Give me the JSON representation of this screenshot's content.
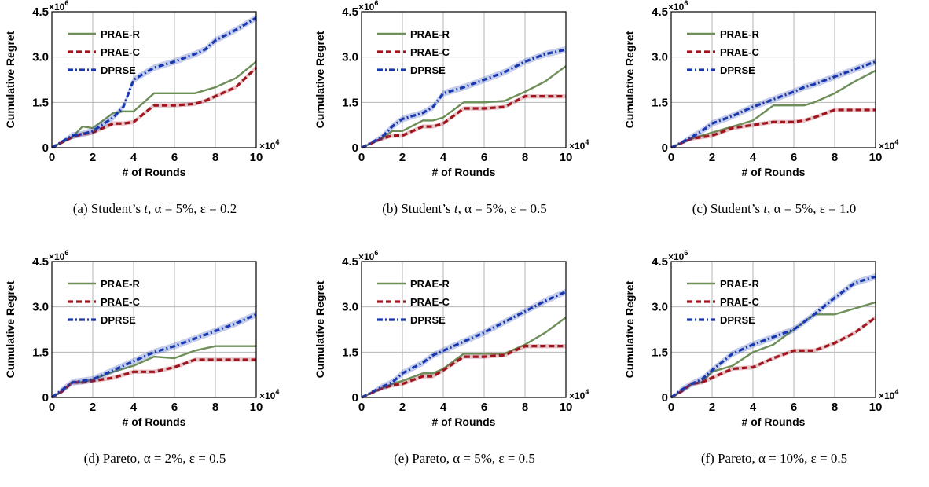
{
  "colors": {
    "prae_r": "#6e8f5a",
    "prae_c": "#a0141e",
    "dprse": "#1838b0",
    "grid": "#b5b5b5"
  },
  "common": {
    "xlabel": "# of Rounds",
    "ylabel": "Cumulative Regret",
    "x_ticks": [
      "0",
      "2",
      "4",
      "6",
      "8",
      "10"
    ],
    "y_ticks": [
      "0",
      "1.5",
      "3.0",
      "4.5"
    ],
    "x_multiplier": "×10",
    "x_multiplier_exp": "4",
    "y_multiplier": "×10",
    "y_multiplier_exp": "6",
    "legend": [
      "PRAE-R",
      "PRAE-C",
      "DPRSE"
    ]
  },
  "captions": [
    {
      "label": "(a) Student’s ",
      "dist": "t",
      "alpha": "α = 5%",
      "eps": "ε = 0.2"
    },
    {
      "label": "(b) Student’s ",
      "dist": "t",
      "alpha": "α = 5%",
      "eps": "ε = 0.5"
    },
    {
      "label": "(c) Student’s ",
      "dist": "t",
      "alpha": "α = 5%",
      "eps": "ε = 1.0"
    },
    {
      "label": "(d) Pareto, ",
      "dist": "",
      "alpha": "α = 2%",
      "eps": "ε = 0.5"
    },
    {
      "label": "(e) Pareto, ",
      "dist": "",
      "alpha": "α = 5%",
      "eps": "ε = 0.5"
    },
    {
      "label": "(f) Pareto, ",
      "dist": "",
      "alpha": "α = 10%",
      "eps": "ε = 0.5"
    }
  ],
  "chart_data": [
    {
      "type": "line",
      "xlim": [
        0,
        10
      ],
      "ylim": [
        0,
        4.5
      ],
      "grid": true,
      "legend_position": "top-left",
      "xlabel": "# of Rounds",
      "ylabel": "Cumulative Regret",
      "x": [
        0,
        1,
        1.5,
        2,
        3,
        3.5,
        4,
        5,
        6,
        7,
        7.5,
        8,
        9,
        10
      ],
      "series": [
        {
          "name": "PRAE-R",
          "values": [
            0,
            0.35,
            0.7,
            0.65,
            1.15,
            1.2,
            1.2,
            1.8,
            1.8,
            1.8,
            1.9,
            2.0,
            2.3,
            2.85
          ]
        },
        {
          "name": "PRAE-C",
          "values": [
            0,
            0.35,
            0.45,
            0.5,
            0.8,
            0.8,
            0.85,
            1.4,
            1.4,
            1.45,
            1.55,
            1.7,
            2.0,
            2.65
          ]
        },
        {
          "name": "DPRSE",
          "values": [
            0,
            0.4,
            0.45,
            0.55,
            1.0,
            1.35,
            2.25,
            2.65,
            2.85,
            3.1,
            3.25,
            3.55,
            3.9,
            4.3
          ]
        }
      ]
    },
    {
      "type": "line",
      "xlim": [
        0,
        10
      ],
      "ylim": [
        0,
        4.5
      ],
      "grid": true,
      "legend_position": "top-left",
      "xlabel": "# of Rounds",
      "ylabel": "Cumulative Regret",
      "x": [
        0,
        1,
        1.5,
        2,
        3,
        3.5,
        4,
        5,
        6,
        7,
        8,
        9,
        10
      ],
      "series": [
        {
          "name": "PRAE-R",
          "values": [
            0,
            0.3,
            0.55,
            0.55,
            0.9,
            0.9,
            1.0,
            1.5,
            1.5,
            1.55,
            1.85,
            2.2,
            2.7
          ]
        },
        {
          "name": "PRAE-C",
          "values": [
            0,
            0.3,
            0.4,
            0.4,
            0.7,
            0.7,
            0.8,
            1.3,
            1.3,
            1.35,
            1.7,
            1.7,
            1.7
          ]
        },
        {
          "name": "DPRSE",
          "values": [
            0,
            0.35,
            0.7,
            0.95,
            1.15,
            1.35,
            1.8,
            2.0,
            2.25,
            2.5,
            2.85,
            3.1,
            3.25
          ]
        }
      ]
    },
    {
      "type": "line",
      "xlim": [
        0,
        10
      ],
      "ylim": [
        0,
        4.5
      ],
      "grid": true,
      "legend_position": "top-left",
      "xlabel": "# of Rounds",
      "ylabel": "Cumulative Regret",
      "x": [
        0,
        1,
        1.5,
        2,
        3,
        4,
        5,
        6,
        6.5,
        7,
        8,
        9,
        10
      ],
      "series": [
        {
          "name": "PRAE-R",
          "values": [
            0,
            0.3,
            0.4,
            0.5,
            0.7,
            0.9,
            1.4,
            1.4,
            1.4,
            1.5,
            1.8,
            2.2,
            2.55
          ]
        },
        {
          "name": "PRAE-C",
          "values": [
            0,
            0.3,
            0.35,
            0.4,
            0.65,
            0.75,
            0.85,
            0.85,
            0.9,
            1.0,
            1.25,
            1.25,
            1.25
          ]
        },
        {
          "name": "DPRSE",
          "values": [
            0,
            0.35,
            0.55,
            0.8,
            1.05,
            1.35,
            1.6,
            1.85,
            2.0,
            2.1,
            2.35,
            2.6,
            2.85
          ]
        }
      ]
    },
    {
      "type": "line",
      "xlim": [
        0,
        10
      ],
      "ylim": [
        0,
        4.5
      ],
      "grid": true,
      "legend_position": "top-left",
      "xlabel": "# of Rounds",
      "ylabel": "Cumulative Regret",
      "x": [
        0,
        0.5,
        1,
        1.5,
        2,
        3,
        4,
        5,
        6,
        7,
        8,
        9,
        10
      ],
      "series": [
        {
          "name": "PRAE-R",
          "values": [
            0,
            0.2,
            0.5,
            0.5,
            0.6,
            0.85,
            1.05,
            1.35,
            1.3,
            1.55,
            1.7,
            1.7,
            1.7
          ]
        },
        {
          "name": "PRAE-C",
          "values": [
            0,
            0.2,
            0.5,
            0.5,
            0.55,
            0.65,
            0.85,
            0.85,
            1.0,
            1.25,
            1.25,
            1.25,
            1.25
          ]
        },
        {
          "name": "DPRSE",
          "values": [
            0,
            0.25,
            0.5,
            0.55,
            0.6,
            0.9,
            1.2,
            1.5,
            1.7,
            1.95,
            2.2,
            2.45,
            2.75
          ]
        }
      ]
    },
    {
      "type": "line",
      "xlim": [
        0,
        10
      ],
      "ylim": [
        0,
        4.5
      ],
      "grid": true,
      "legend_position": "top-left",
      "xlabel": "# of Rounds",
      "ylabel": "Cumulative Regret",
      "x": [
        0,
        1,
        1.5,
        2,
        3,
        3.5,
        4,
        5,
        6,
        7,
        8,
        9,
        10
      ],
      "series": [
        {
          "name": "PRAE-R",
          "values": [
            0,
            0.3,
            0.45,
            0.55,
            0.8,
            0.8,
            0.95,
            1.45,
            1.45,
            1.45,
            1.75,
            2.15,
            2.65
          ]
        },
        {
          "name": "PRAE-C",
          "values": [
            0,
            0.3,
            0.4,
            0.45,
            0.7,
            0.7,
            0.9,
            1.35,
            1.35,
            1.4,
            1.7,
            1.7,
            1.7
          ]
        },
        {
          "name": "DPRSE",
          "values": [
            0,
            0.35,
            0.5,
            0.8,
            1.15,
            1.4,
            1.55,
            1.85,
            2.15,
            2.5,
            2.85,
            3.2,
            3.5
          ]
        }
      ]
    },
    {
      "type": "line",
      "xlim": [
        0,
        10
      ],
      "ylim": [
        0,
        4.5
      ],
      "grid": true,
      "legend_position": "top-left",
      "xlabel": "# of Rounds",
      "ylabel": "Cumulative Regret",
      "x": [
        0,
        0.5,
        1,
        1.5,
        2,
        3,
        4,
        5,
        6,
        7,
        8,
        9,
        10
      ],
      "series": [
        {
          "name": "PRAE-R",
          "values": [
            0,
            0.2,
            0.45,
            0.5,
            0.85,
            1.05,
            1.5,
            1.75,
            2.25,
            2.75,
            2.75,
            2.95,
            3.15
          ]
        },
        {
          "name": "PRAE-C",
          "values": [
            0,
            0.2,
            0.45,
            0.5,
            0.65,
            0.95,
            1.0,
            1.3,
            1.55,
            1.55,
            1.8,
            2.15,
            2.65
          ]
        },
        {
          "name": "DPRSE",
          "values": [
            0,
            0.25,
            0.45,
            0.6,
            0.9,
            1.45,
            1.75,
            2.0,
            2.25,
            2.75,
            3.3,
            3.8,
            4.0
          ]
        }
      ]
    }
  ]
}
